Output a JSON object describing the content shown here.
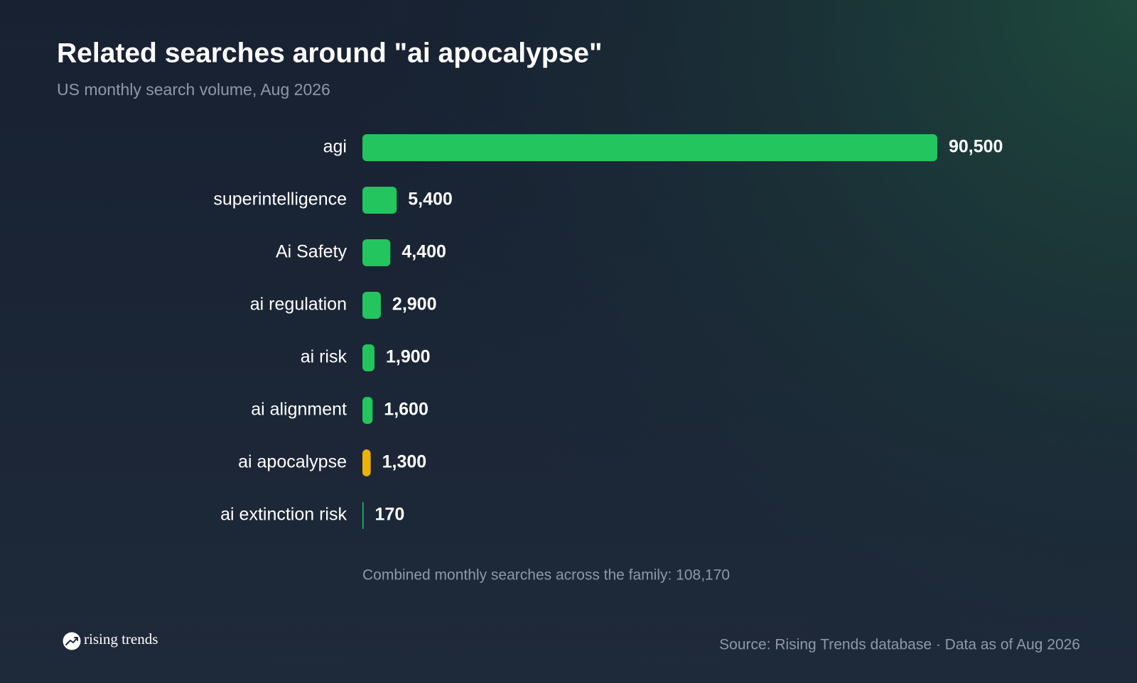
{
  "chart_data": {
    "type": "bar",
    "orientation": "horizontal",
    "title": "Related searches around \"ai apocalypse\"",
    "subtitle": "US monthly search volume, Aug 2026",
    "categories": [
      "agi",
      "superintelligence",
      "Ai Safety",
      "ai regulation",
      "ai risk",
      "ai alignment",
      "ai apocalypse",
      "ai extinction risk"
    ],
    "values": [
      90500,
      5400,
      4400,
      2900,
      1900,
      1600,
      1300,
      170
    ],
    "value_labels": [
      "90,500",
      "5,400",
      "4,400",
      "2,900",
      "1,900",
      "1,600",
      "1,300",
      "170"
    ],
    "colors": [
      "#22c55e",
      "#22c55e",
      "#22c55e",
      "#22c55e",
      "#22c55e",
      "#22c55e",
      "#eab308",
      "#22c55e"
    ],
    "footnote": "Combined monthly searches across the family: 108,170",
    "source": "Source: Rising Trends database · Data as of Aug 2026",
    "brand": "rising trends"
  }
}
